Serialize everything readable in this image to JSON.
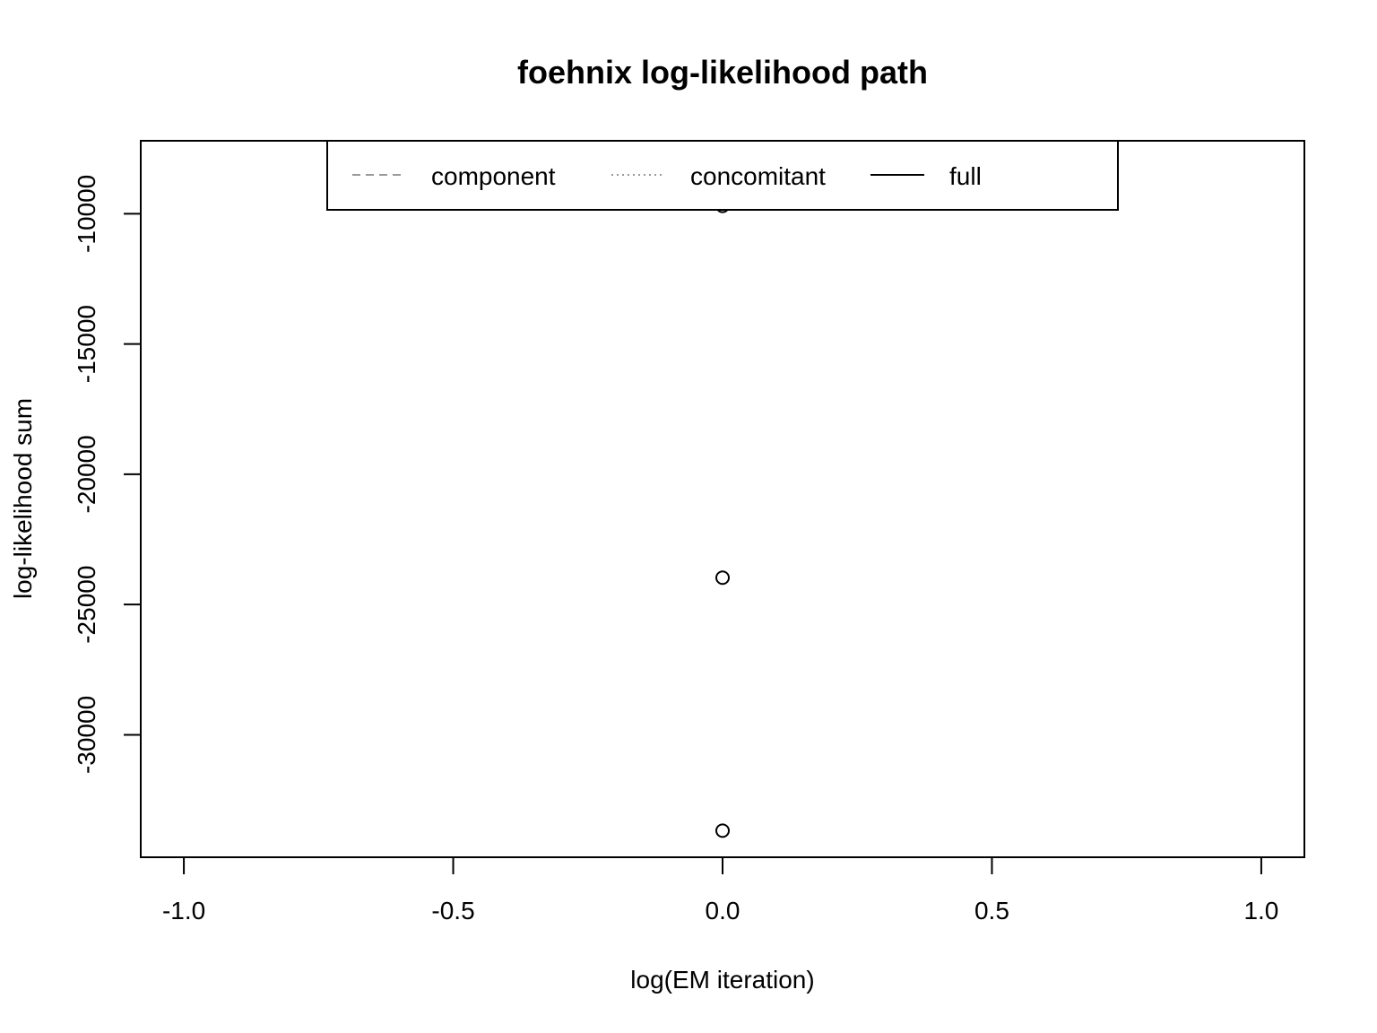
{
  "chart_data": {
    "type": "scatter",
    "title": "foehnix log-likelihood path",
    "xlabel": "log(EM iteration)",
    "ylabel": "log-likelihood sum",
    "xlim": [
      -1.08,
      1.08
    ],
    "ylim": [
      -34700,
      -7200
    ],
    "x_ticks": [
      -1.0,
      -0.5,
      0.0,
      0.5,
      1.0
    ],
    "x_tick_labels": [
      "-1.0",
      "-0.5",
      "0.0",
      "0.5",
      "1.0"
    ],
    "y_ticks": [
      -30000,
      -25000,
      -20000,
      -15000,
      -10000
    ],
    "y_tick_labels": [
      "-30000",
      "-25000",
      "-20000",
      "-15000",
      "-10000"
    ],
    "grid": false,
    "legend": {
      "position": "top",
      "entries": [
        {
          "label": "component",
          "line": "dashed",
          "color": "#999999"
        },
        {
          "label": "concomitant",
          "line": "dotted",
          "color": "#999999"
        },
        {
          "label": "full",
          "line": "solid",
          "color": "#000000"
        }
      ]
    },
    "points": [
      {
        "x": 0.0,
        "y": -9700
      },
      {
        "x": 0.0,
        "y": -23970
      },
      {
        "x": 0.0,
        "y": -33680
      }
    ]
  }
}
